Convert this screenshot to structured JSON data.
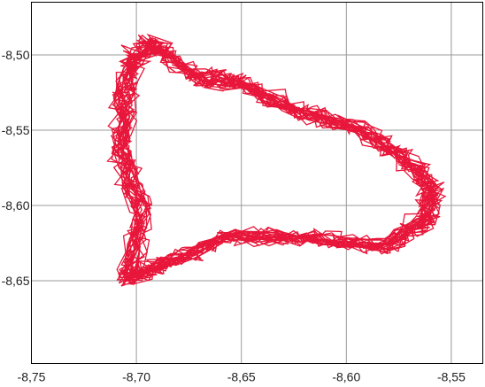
{
  "chart_data": {
    "type": "line",
    "title": "",
    "xlabel": "",
    "ylabel": "",
    "xlim": [
      -8.75,
      -8.535
    ],
    "ylim": [
      -8.705,
      -8.465
    ],
    "x_ticks": [
      -8.75,
      -8.7,
      -8.65,
      -8.6,
      -8.55
    ],
    "x_tick_labels": [
      "-8,75",
      "-8,70",
      "-8,65",
      "-8,60",
      "-8,55"
    ],
    "y_ticks": [
      -8.5,
      -8.55,
      -8.6,
      -8.65
    ],
    "y_tick_labels": [
      "-8,50",
      "-8,55",
      "-8,60",
      "-8,65"
    ],
    "grid": true,
    "series_color": "#e8163a",
    "outline_vertices": [
      [
        -8.692,
        -8.493
      ],
      [
        -8.671,
        -8.515
      ],
      [
        -8.65,
        -8.519
      ],
      [
        -8.625,
        -8.537
      ],
      [
        -8.598,
        -8.547
      ],
      [
        -8.574,
        -8.567
      ],
      [
        -8.56,
        -8.587
      ],
      [
        -8.561,
        -8.609
      ],
      [
        -8.582,
        -8.627
      ],
      [
        -8.617,
        -8.621
      ],
      [
        -8.656,
        -8.62
      ],
      [
        -8.684,
        -8.637
      ],
      [
        -8.703,
        -8.649
      ],
      [
        -8.698,
        -8.601
      ],
      [
        -8.707,
        -8.566
      ],
      [
        -8.705,
        -8.534
      ],
      [
        -8.703,
        -8.506
      ]
    ],
    "loops": 24,
    "jitter": 0.006
  }
}
